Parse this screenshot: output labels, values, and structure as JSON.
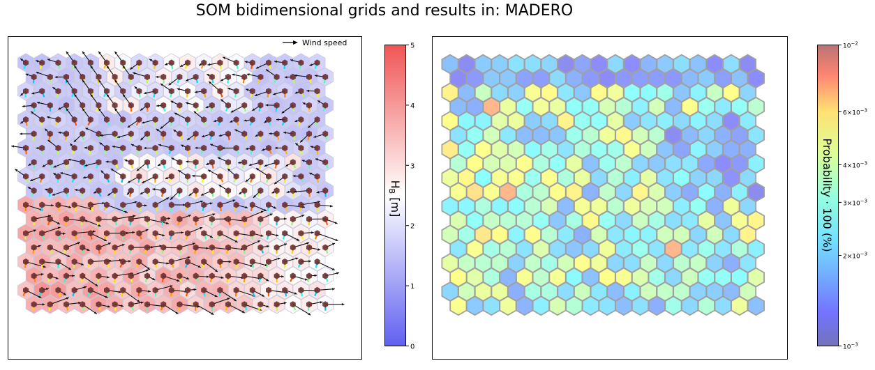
{
  "title": "SOM bidimensional grids and results in: MADERO",
  "colors": {
    "low": "#5a5ae6",
    "mid": "#ffffff",
    "high": "#f07070",
    "arrow": "#000000",
    "node": "#6b2f2f"
  },
  "chart_data": [
    {
      "type": "heatmap",
      "grid": {
        "rows": 18,
        "cols": 19,
        "shape": "hexagon"
      },
      "legend": {
        "label": "Wind speed",
        "placement": "top-right"
      },
      "colorbar": {
        "label": "H_B [m]",
        "label_main": "H",
        "label_sub": "B",
        "label_unit": " [m]",
        "range": [
          0,
          5
        ],
        "ticks": [
          "0",
          "1",
          "2",
          "3",
          "4",
          "5"
        ],
        "colormap": "bwr"
      },
      "pattern_note": "high H_B in bottom-left region, low (blue) at top"
    },
    {
      "type": "heatmap",
      "grid": {
        "rows": 18,
        "cols": 19,
        "shape": "hexagon"
      },
      "colorbar": {
        "label": "Probability · 100 (%)",
        "range": [
          0.001,
          0.01
        ],
        "scale": "log",
        "colormap": "jet",
        "ticks": [
          {
            "base": "10",
            "exp": "−2",
            "value": 0.01
          },
          {
            "mant": "6×",
            "base": "10",
            "exp": "−3",
            "value": 0.006
          },
          {
            "mant": "4×",
            "base": "10",
            "exp": "−3",
            "value": 0.004
          },
          {
            "mant": "3×",
            "base": "10",
            "exp": "−3",
            "value": 0.003
          },
          {
            "mant": "2×",
            "base": "10",
            "exp": "−3",
            "value": 0.002
          },
          {
            "base": "10",
            "exp": "−3",
            "value": 0.001
          }
        ]
      }
    }
  ]
}
